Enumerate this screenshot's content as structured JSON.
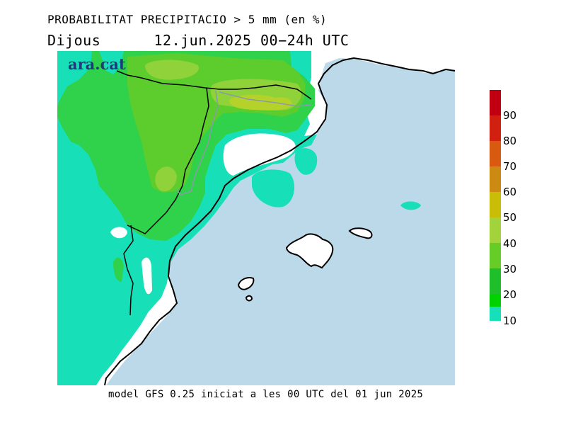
{
  "header": {
    "title": "PROBABILITAT PRECIPITACIO > 5 mm (en %)",
    "day": "Dijous",
    "date_range": "12.jun.2025 00−24h UTC"
  },
  "logo": {
    "text": "ara.cat"
  },
  "footer": {
    "text": "model GFS 0.25 iniciat a les 00 UTC del 01 jun 2025"
  },
  "legend": {
    "items": [
      {
        "label": "",
        "color": "#c00010"
      },
      {
        "label": "90",
        "color": "#d22010"
      },
      {
        "label": "80",
        "color": "#d85a10"
      },
      {
        "label": "70",
        "color": "#cd8a12"
      },
      {
        "label": "60",
        "color": "#c9bd08"
      },
      {
        "label": "50",
        "color": "#a3d33a"
      },
      {
        "label": "40",
        "color": "#66cc28"
      },
      {
        "label": "30",
        "color": "#1ebf2a"
      },
      {
        "label": "20",
        "color": "#00d200"
      },
      {
        "label": "10",
        "color": "#17e0b8"
      }
    ]
  },
  "map_colors": {
    "sea": "#bcd9ea",
    "land": "#ffffff",
    "prob_10": "#17e0b8",
    "prob_20": "#2fd24a",
    "prob_30": "#5ccd2c",
    "prob_40": "#8fd23a",
    "prob_50": "#b4d22a"
  }
}
